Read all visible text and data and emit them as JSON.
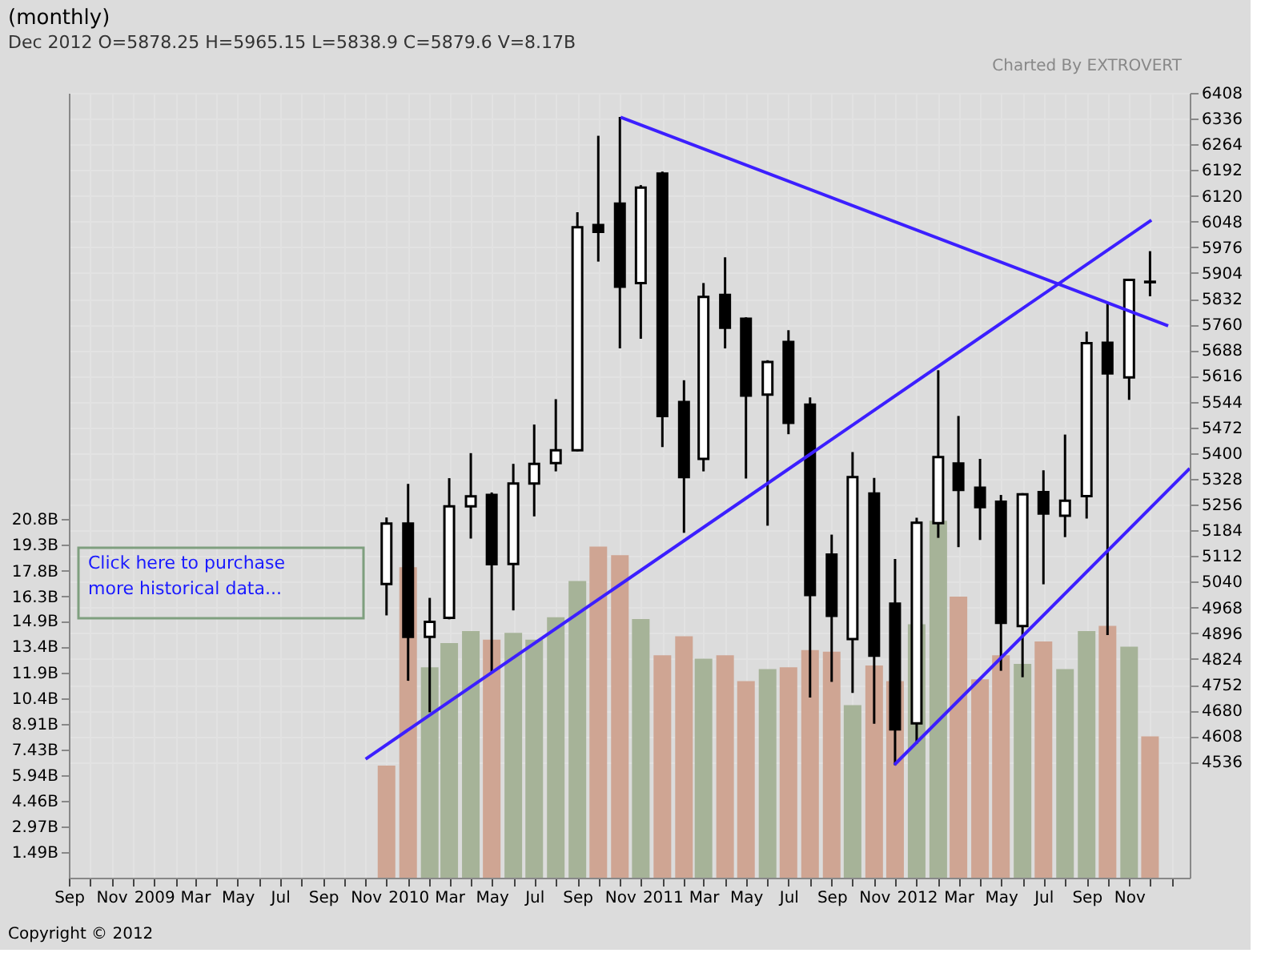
{
  "chart_data": {
    "type": "candlestick",
    "title": "(monthly)",
    "subtitle": "Dec 2012    O=5878.25    H=5965.15    L=5838.9    C=5879.6    V=8.17B",
    "annotations": [
      "Click here to purchase\nmore historical data...",
      "Charted By EXTROVERT",
      "Copyright © 2012"
    ],
    "x": [
      "2009-12",
      "2010-01",
      "2010-02",
      "2010-03",
      "2010-04",
      "2010-05",
      "2010-06",
      "2010-07",
      "2010-08",
      "2010-09",
      "2010-10",
      "2010-11",
      "2010-12",
      "2011-01",
      "2011-02",
      "2011-03",
      "2011-04",
      "2011-05",
      "2011-06",
      "2011-07",
      "2011-08",
      "2011-09",
      "2011-10",
      "2011-11",
      "2011-12",
      "2012-01",
      "2012-02",
      "2012-03",
      "2012-04",
      "2012-05",
      "2012-06",
      "2012-07",
      "2012-08",
      "2012-09",
      "2012-10",
      "2012-11",
      "2012-12"
    ],
    "ohlc": [
      [
        5034,
        5220,
        4946,
        5203
      ],
      [
        5203,
        5314,
        4763,
        4886
      ],
      [
        4886,
        4995,
        4675,
        4928
      ],
      [
        4939,
        5330,
        4935,
        5251
      ],
      [
        5251,
        5400,
        5161,
        5279
      ],
      [
        5283,
        5290,
        4787,
        5089
      ],
      [
        5090,
        5370,
        4960,
        5315
      ],
      [
        5315,
        5480,
        5223,
        5370
      ],
      [
        5372,
        5551,
        5349,
        5408
      ],
      [
        5408,
        6074,
        5405,
        6032
      ],
      [
        6038,
        6288,
        5936,
        6019
      ],
      [
        6098,
        6341,
        5693,
        5866
      ],
      [
        5876,
        6150,
        5720,
        6143
      ],
      [
        6182,
        6188,
        5417,
        5504
      ],
      [
        5543,
        5604,
        5177,
        5333
      ],
      [
        5384,
        5876,
        5349,
        5837
      ],
      [
        5843,
        5948,
        5693,
        5751
      ],
      [
        5776,
        5780,
        5329,
        5561
      ],
      [
        5564,
        5660,
        5197,
        5655
      ],
      [
        5711,
        5744,
        5453,
        5485
      ],
      [
        5536,
        5556,
        4716,
        5003
      ],
      [
        5116,
        5172,
        4760,
        4945
      ],
      [
        4880,
        5403,
        4729,
        5333
      ],
      [
        5287,
        5331,
        4643,
        4833
      ],
      [
        4979,
        5104,
        4527,
        4627
      ],
      [
        4644,
        5219,
        4587,
        5205
      ],
      [
        5204,
        5632,
        5163,
        5389
      ],
      [
        5371,
        5504,
        5137,
        5297
      ],
      [
        5303,
        5384,
        5157,
        5249
      ],
      [
        5264,
        5283,
        4791,
        4925
      ],
      [
        4916,
        5288,
        4773,
        5285
      ],
      [
        5291,
        5352,
        5033,
        5231
      ],
      [
        5225,
        5452,
        5165,
        5267
      ],
      [
        5280,
        5740,
        5217,
        5708
      ],
      [
        5709,
        5820,
        4891,
        5623
      ],
      [
        5612,
        5885,
        5549,
        5885
      ],
      [
        5878.25,
        5965.15,
        5838.9,
        5879.6
      ]
    ],
    "xlim": [
      "2008-09-01",
      "2013-01-27"
    ],
    "xticks": [
      {
        "value": "2008-09",
        "label": "Sep"
      },
      {
        "value": "2008-10",
        "label": null
      },
      {
        "value": "2008-11",
        "label": "Nov"
      },
      {
        "value": "2008-12",
        "label": null
      },
      {
        "value": "2009-01",
        "label": "2009"
      },
      {
        "value": "2009-02",
        "label": null
      },
      {
        "value": "2009-03",
        "label": "Mar"
      },
      {
        "value": "2009-04",
        "label": null
      },
      {
        "value": "2009-05",
        "label": "May"
      },
      {
        "value": "2009-06",
        "label": null
      },
      {
        "value": "2009-07",
        "label": "Jul"
      },
      {
        "value": "2009-08",
        "label": null
      },
      {
        "value": "2009-09",
        "label": "Sep"
      },
      {
        "value": "2009-10",
        "label": null
      },
      {
        "value": "2009-11",
        "label": "Nov"
      },
      {
        "value": "2009-12",
        "label": null
      },
      {
        "value": "2010-01",
        "label": "2010"
      },
      {
        "value": "2010-02",
        "label": null
      },
      {
        "value": "2010-03",
        "label": "Mar"
      },
      {
        "value": "2010-04",
        "label": null
      },
      {
        "value": "2010-05",
        "label": "May"
      },
      {
        "value": "2010-06",
        "label": null
      },
      {
        "value": "2010-07",
        "label": "Jul"
      },
      {
        "value": "2010-08",
        "label": null
      },
      {
        "value": "2010-09",
        "label": "Sep"
      },
      {
        "value": "2010-10",
        "label": null
      },
      {
        "value": "2010-11",
        "label": "Nov"
      },
      {
        "value": "2010-12",
        "label": null
      },
      {
        "value": "2011-01",
        "label": "2011"
      },
      {
        "value": "2011-02",
        "label": null
      },
      {
        "value": "2011-03",
        "label": "Mar"
      },
      {
        "value": "2011-04",
        "label": null
      },
      {
        "value": "2011-05",
        "label": "May"
      },
      {
        "value": "2011-06",
        "label": null
      },
      {
        "value": "2011-07",
        "label": "Jul"
      },
      {
        "value": "2011-08",
        "label": null
      },
      {
        "value": "2011-09",
        "label": "Sep"
      },
      {
        "value": "2011-10",
        "label": null
      },
      {
        "value": "2011-11",
        "label": "Nov"
      },
      {
        "value": "2011-12",
        "label": null
      },
      {
        "value": "2012-01",
        "label": "2012"
      },
      {
        "value": "2012-02",
        "label": null
      },
      {
        "value": "2012-03",
        "label": "Mar"
      },
      {
        "value": "2012-04",
        "label": null
      },
      {
        "value": "2012-05",
        "label": "May"
      },
      {
        "value": "2012-06",
        "label": null
      },
      {
        "value": "2012-07",
        "label": "Jul"
      },
      {
        "value": "2012-08",
        "label": null
      },
      {
        "value": "2012-09",
        "label": "Sep"
      },
      {
        "value": "2012-10",
        "label": null
      },
      {
        "value": "2012-11",
        "label": "Nov"
      },
      {
        "value": "2012-12",
        "label": null
      },
      {
        "value": "2013-01",
        "label": null
      }
    ],
    "ylim": [
      4212,
      6408
    ],
    "yticks": [
      4536,
      4608,
      4680,
      4752,
      4824,
      4896,
      4968,
      5040,
      5112,
      5184,
      5256,
      5328,
      5400,
      5472,
      5544,
      5616,
      5688,
      5760,
      5832,
      5904,
      5976,
      6048,
      6120,
      6192,
      6264,
      6336,
      6408
    ],
    "y2lim": [
      0,
      45.5
    ],
    "y2ticks": [
      {
        "value": 1.49,
        "label": "1.49B"
      },
      {
        "value": 2.97,
        "label": "2.97B"
      },
      {
        "value": 4.46,
        "label": "4.46B"
      },
      {
        "value": 5.94,
        "label": "5.94B"
      },
      {
        "value": 7.43,
        "label": "7.43B"
      },
      {
        "value": 8.91,
        "label": "8.91B"
      },
      {
        "value": 10.4,
        "label": "10.4B"
      },
      {
        "value": 11.9,
        "label": "11.9B"
      },
      {
        "value": 13.4,
        "label": "13.4B"
      },
      {
        "value": 14.9,
        "label": "14.9B"
      },
      {
        "value": 16.3,
        "label": "16.3B"
      },
      {
        "value": 17.8,
        "label": "17.8B"
      },
      {
        "value": 19.3,
        "label": "19.3B"
      },
      {
        "value": 20.8,
        "label": "20.8B"
      }
    ],
    "grid": true,
    "series": [
      {
        "type": "bar",
        "axis": "y2",
        "values": [
          6.5,
          18.0,
          12.2,
          13.6,
          14.3,
          13.8,
          14.2,
          13.8,
          15.1,
          17.2,
          19.2,
          18.7,
          15.0,
          12.9,
          14.0,
          12.7,
          12.9,
          11.4,
          12.1,
          12.2,
          13.2,
          13.1,
          10.0,
          12.3,
          11.4,
          14.7,
          20.7,
          16.3,
          11.5,
          12.9,
          12.4,
          13.7,
          12.1,
          14.3,
          14.6,
          13.4,
          8.2
        ],
        "colors": [
          "#cfa593",
          "#cfa593",
          "#a6b398",
          "#a6b398",
          "#a6b398",
          "#cfa593",
          "#a6b398",
          "#a6b398",
          "#a6b398",
          "#a6b398",
          "#cfa593",
          "#cfa593",
          "#a6b398",
          "#cfa593",
          "#cfa593",
          "#a6b398",
          "#cfa593",
          "#cfa593",
          "#a6b398",
          "#cfa593",
          "#cfa593",
          "#cfa593",
          "#a6b398",
          "#cfa593",
          "#cfa593",
          "#a6b398",
          "#a6b398",
          "#cfa593",
          "#cfa593",
          "#cfa593",
          "#a6b398",
          "#cfa593",
          "#a6b398",
          "#a6b398",
          "#cfa593",
          "#a6b398",
          "#cfa593"
        ]
      },
      {
        "type": "line",
        "color": "#3c1fff",
        "x": [
          "2009-11-01",
          "2012-12-03"
        ],
        "values": [
          4544,
          6052
        ]
      },
      {
        "type": "line",
        "color": "#3c1fff",
        "x": [
          "2010-11-02",
          "2012-12-27"
        ],
        "values": [
          6340,
          5756
        ]
      },
      {
        "type": "line",
        "color": "#3c1fff",
        "x": [
          "2011-11-30",
          "2013-01-27"
        ],
        "values": [
          4528,
          5357
        ]
      }
    ]
  }
}
